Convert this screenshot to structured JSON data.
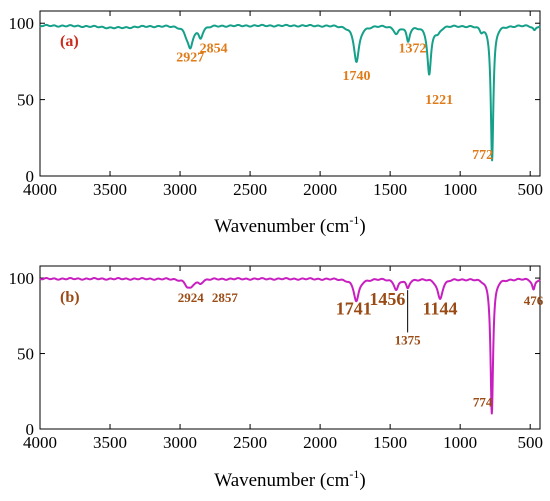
{
  "chart_data": [
    {
      "type": "line",
      "panel_label": "(a)",
      "xlabel_main": "Wavenumber (cm",
      "xlabel_sup": "-1",
      "xlabel_end": ")",
      "ylabel": "",
      "xlim": [
        4000,
        430
      ],
      "ylim": [
        0,
        108
      ],
      "x_ticks": [
        4000,
        3500,
        3000,
        2500,
        2000,
        1500,
        1000,
        500
      ],
      "y_ticks": [
        0,
        50,
        100
      ],
      "line_color": "#15a08a",
      "label_color": "#e07b1a",
      "panel_label_color": "#cc2a1a",
      "baseline": 98.5,
      "peaks": [
        {
          "x": 3450,
          "depth": 1.5,
          "width": 160
        },
        {
          "x": 2955,
          "depth": 3,
          "width": 20
        },
        {
          "x": 2927,
          "depth": 14,
          "width": 22
        },
        {
          "x": 2854,
          "depth": 7,
          "width": 18
        },
        {
          "x": 1740,
          "depth": 24,
          "width": 22
        },
        {
          "x": 1455,
          "depth": 5,
          "width": 20
        },
        {
          "x": 1372,
          "depth": 10,
          "width": 14
        },
        {
          "x": 1221,
          "depth": 32,
          "width": 16
        },
        {
          "x": 1160,
          "depth": 4,
          "width": 20
        },
        {
          "x": 850,
          "depth": 3,
          "width": 14
        },
        {
          "x": 772,
          "depth": 88,
          "width": 11
        },
        {
          "x": 470,
          "depth": 3,
          "width": 12
        }
      ],
      "annotations": [
        {
          "text": "2927",
          "x": 2927,
          "y": 75,
          "size": 14
        },
        {
          "text": "2854",
          "x": 2760,
          "y": 81,
          "size": 14
        },
        {
          "text": "1740",
          "x": 1740,
          "y": 63,
          "size": 14
        },
        {
          "text": "1372",
          "x": 1340,
          "y": 81,
          "size": 14
        },
        {
          "text": "1221",
          "x": 1150,
          "y": 47,
          "size": 14
        },
        {
          "text": "772",
          "x": 840,
          "y": 11,
          "size": 14
        }
      ]
    },
    {
      "type": "line",
      "panel_label": "(b)",
      "xlabel_main": "Wavenumber (cm",
      "xlabel_sup": "-1",
      "xlabel_end": ")",
      "ylabel": "",
      "xlim": [
        4000,
        430
      ],
      "ylim": [
        0,
        108
      ],
      "x_ticks": [
        4000,
        3500,
        3000,
        2500,
        2000,
        1500,
        1000,
        500
      ],
      "y_ticks": [
        0,
        50,
        100
      ],
      "line_color": "#c81fc0",
      "label_color": "#9a4a14",
      "panel_label_color": "#9a4a14",
      "baseline": 99.5,
      "peaks": [
        {
          "x": 2950,
          "depth": 3,
          "width": 20
        },
        {
          "x": 2924,
          "depth": 5,
          "width": 25
        },
        {
          "x": 2857,
          "depth": 2.5,
          "width": 20
        },
        {
          "x": 1741,
          "depth": 15,
          "width": 22
        },
        {
          "x": 1456,
          "depth": 7,
          "width": 18
        },
        {
          "x": 1375,
          "depth": 6,
          "width": 14
        },
        {
          "x": 1144,
          "depth": 13,
          "width": 22
        },
        {
          "x": 774,
          "depth": 89,
          "width": 11
        },
        {
          "x": 476,
          "depth": 7,
          "width": 12
        }
      ],
      "annotations": [
        {
          "text": "2924",
          "x": 2924,
          "y": 84,
          "size": 13
        },
        {
          "text": "2857",
          "x": 2680,
          "y": 84,
          "size": 13
        },
        {
          "text": "1741",
          "x": 1760,
          "y": 76,
          "size": 18
        },
        {
          "text": "1456",
          "x": 1520,
          "y": 82,
          "size": 18
        },
        {
          "text": "1375",
          "x": 1375,
          "y": 56,
          "size": 13
        },
        {
          "text": "1144",
          "x": 1144,
          "y": 76,
          "size": 18
        },
        {
          "text": "774",
          "x": 840,
          "y": 15,
          "size": 13
        },
        {
          "text": "476",
          "x": 476,
          "y": 82,
          "size": 13
        }
      ],
      "leader_line": {
        "x": 1375,
        "y_from": 92,
        "y_to": 64
      }
    }
  ]
}
